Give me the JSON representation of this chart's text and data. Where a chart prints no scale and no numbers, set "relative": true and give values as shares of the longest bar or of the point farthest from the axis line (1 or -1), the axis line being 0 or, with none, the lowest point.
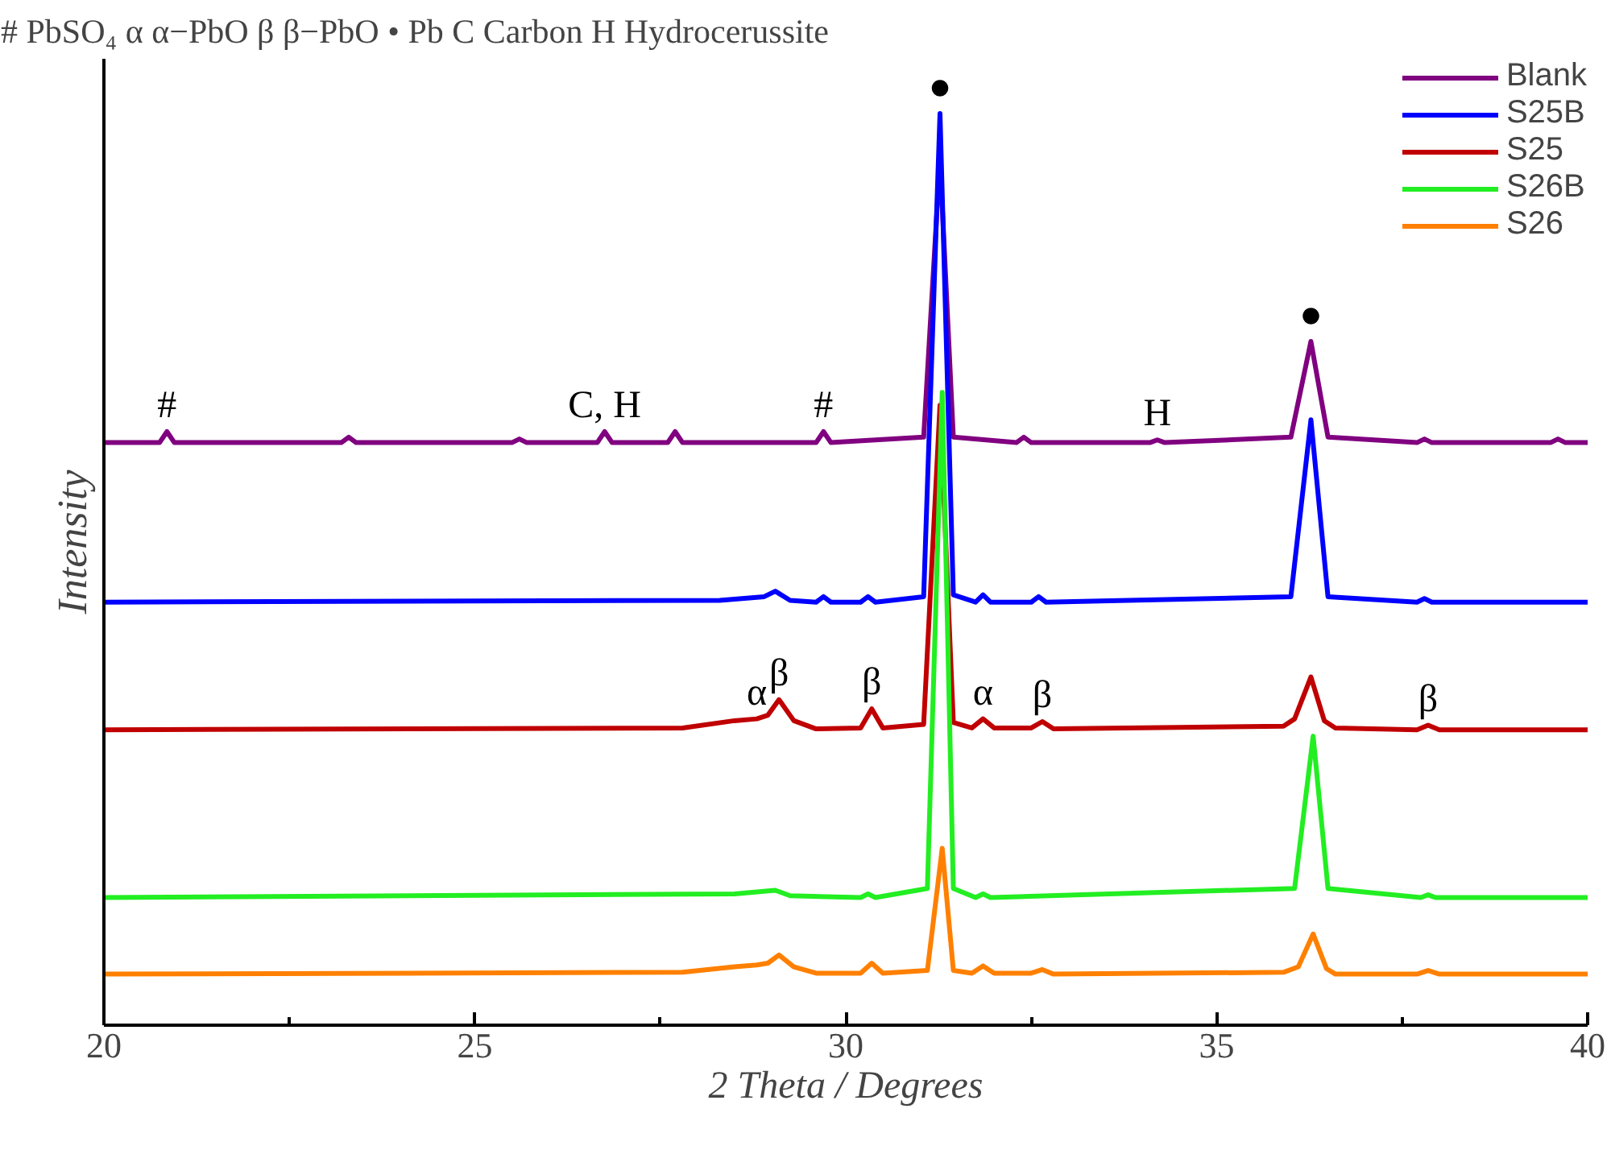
{
  "chart_data": {
    "type": "line",
    "relative": true,
    "xlabel": "2 Theta / Degrees",
    "ylabel": "Intensity",
    "xlim": [
      20,
      40
    ],
    "xticks": [
      20,
      {
        "value": 22.5,
        "label": null
      },
      25,
      {
        "value": 27.5,
        "label": null
      },
      30,
      {
        "value": 32.5,
        "label": null
      },
      35,
      {
        "value": 37.5,
        "label": null
      },
      40
    ],
    "grid": false,
    "legend": "top right",
    "marker": "none",
    "line_style": "solid",
    "annotations": [
      "# PbSO₄   α α−PbO    β  β−PbO    • Pb     C Carbon  H Hydrocerussite",
      {
        "text": "#",
        "x": 20.85,
        "y": 0.651
      },
      {
        "text": "C, H",
        "x": 26.75,
        "y": 0.651
      },
      {
        "text": "#",
        "x": 29.7,
        "y": 0.651
      },
      {
        "text": "H",
        "x": 34.2,
        "y": 0.642
      },
      {
        "text": "●",
        "x": 31.27,
        "y": 1.0
      },
      {
        "text": "●",
        "x": 36.27,
        "y": 0.75
      },
      {
        "text": "α",
        "x": 28.8,
        "y": 0.336
      },
      {
        "text": "β",
        "x": 29.1,
        "y": 0.357
      },
      {
        "text": "β",
        "x": 30.35,
        "y": 0.347
      },
      {
        "text": "α",
        "x": 31.85,
        "y": 0.336
      },
      {
        "text": "β",
        "x": 32.65,
        "y": 0.333
      },
      {
        "text": "β",
        "x": 37.85,
        "y": 0.329
      }
    ],
    "series": [
      {
        "name": "Blank",
        "color": "#800080",
        "x": [
          20,
          20.75,
          20.85,
          20.95,
          23.2,
          23.3,
          23.4,
          25.5,
          25.6,
          25.7,
          26.65,
          26.75,
          26.85,
          27.6,
          27.7,
          27.8,
          29.6,
          29.7,
          29.8,
          31.05,
          31.27,
          31.45,
          32.3,
          32.4,
          32.5,
          34.1,
          34.2,
          34.3,
          36.0,
          36.27,
          36.5,
          37.7,
          37.8,
          37.9,
          39.5,
          39.6,
          39.7,
          40
        ],
        "values": [
          0.639,
          0.639,
          0.651,
          0.639,
          0.639,
          0.645,
          0.639,
          0.639,
          0.643,
          0.639,
          0.639,
          0.651,
          0.639,
          0.639,
          0.651,
          0.639,
          0.639,
          0.651,
          0.639,
          0.645,
          0.95,
          0.645,
          0.639,
          0.645,
          0.639,
          0.639,
          0.642,
          0.639,
          0.645,
          0.75,
          0.645,
          0.639,
          0.643,
          0.639,
          0.639,
          0.643,
          0.639,
          0.639
        ]
      },
      {
        "name": "S25B",
        "color": "#0000ff",
        "x": [
          20,
          28.3,
          28.9,
          29.05,
          29.25,
          29.6,
          29.7,
          29.8,
          30.2,
          30.3,
          30.4,
          31.05,
          31.27,
          31.45,
          31.75,
          31.85,
          31.95,
          32.5,
          32.6,
          32.7,
          36.0,
          36.27,
          36.5,
          37.7,
          37.8,
          37.9,
          40
        ],
        "values": [
          0.464,
          0.466,
          0.47,
          0.476,
          0.466,
          0.464,
          0.47,
          0.464,
          0.464,
          0.47,
          0.464,
          0.47,
          1.0,
          0.472,
          0.464,
          0.472,
          0.464,
          0.464,
          0.47,
          0.464,
          0.47,
          0.664,
          0.47,
          0.464,
          0.468,
          0.464,
          0.464
        ]
      },
      {
        "name": "S25",
        "color": "#c00000",
        "x": [
          20,
          27.8,
          28.5,
          28.8,
          28.95,
          29.1,
          29.3,
          29.6,
          30.2,
          30.35,
          30.5,
          31.05,
          31.27,
          31.45,
          31.7,
          31.85,
          32.0,
          32.5,
          32.65,
          32.8,
          35.9,
          36.05,
          36.27,
          36.45,
          36.6,
          37.7,
          37.85,
          38.0,
          40
        ],
        "values": [
          0.324,
          0.326,
          0.334,
          0.336,
          0.34,
          0.357,
          0.334,
          0.325,
          0.326,
          0.347,
          0.326,
          0.33,
          0.68,
          0.332,
          0.326,
          0.336,
          0.326,
          0.326,
          0.333,
          0.325,
          0.328,
          0.336,
          0.382,
          0.334,
          0.326,
          0.324,
          0.329,
          0.324,
          0.324
        ]
      },
      {
        "name": "S26B",
        "color": "#22ee22",
        "x": [
          20,
          28.5,
          29.05,
          29.25,
          30.2,
          30.3,
          30.4,
          31.1,
          31.3,
          31.45,
          31.75,
          31.85,
          31.95,
          36.05,
          36.3,
          36.5,
          37.75,
          37.85,
          37.95,
          40
        ],
        "values": [
          0.14,
          0.144,
          0.148,
          0.142,
          0.14,
          0.144,
          0.14,
          0.15,
          0.694,
          0.15,
          0.14,
          0.144,
          0.14,
          0.15,
          0.317,
          0.15,
          0.14,
          0.143,
          0.14,
          0.14
        ]
      },
      {
        "name": "S26",
        "color": "#ff8000",
        "x": [
          20,
          27.8,
          28.5,
          28.8,
          28.95,
          29.1,
          29.3,
          29.6,
          30.2,
          30.35,
          30.5,
          31.1,
          31.3,
          31.45,
          31.7,
          31.85,
          32.0,
          32.5,
          32.65,
          32.8,
          35.9,
          36.1,
          36.3,
          36.48,
          36.6,
          37.7,
          37.85,
          38.0,
          40
        ],
        "values": [
          0.056,
          0.058,
          0.064,
          0.066,
          0.068,
          0.077,
          0.064,
          0.057,
          0.057,
          0.068,
          0.057,
          0.06,
          0.194,
          0.06,
          0.057,
          0.065,
          0.057,
          0.057,
          0.061,
          0.056,
          0.058,
          0.064,
          0.1,
          0.062,
          0.056,
          0.056,
          0.06,
          0.056,
          0.056
        ]
      }
    ]
  }
}
